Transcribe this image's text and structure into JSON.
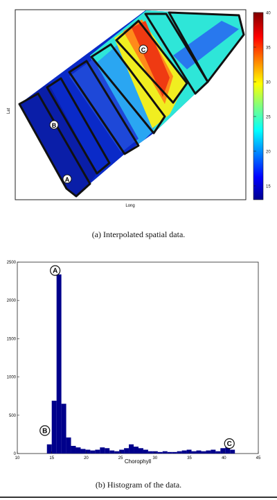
{
  "chart_data": [
    {
      "type": "heatmap",
      "xlabel": "Long",
      "ylabel": "Lat",
      "colorbar": {
        "ticks": [
          15,
          20,
          25,
          30,
          35,
          40
        ],
        "range": [
          13,
          40
        ]
      },
      "markers": [
        {
          "label": "A",
          "role": "south-tip"
        },
        {
          "label": "B",
          "role": "lower-track"
        },
        {
          "label": "C",
          "role": "upper-track"
        }
      ],
      "caption": "(a)  Interpolated spatial data."
    },
    {
      "type": "bar",
      "xlabel": "Chorophyll",
      "xlim": [
        10,
        45
      ],
      "ylim": [
        0,
        2500
      ],
      "xticks": [
        10,
        15,
        20,
        25,
        30,
        35,
        40,
        45
      ],
      "yticks": [
        0,
        500,
        1000,
        1500,
        2000,
        2500
      ],
      "bar_color": "#00008b",
      "bin_width": 0.7,
      "x": [
        14.3,
        15.0,
        15.7,
        16.4,
        17.1,
        17.8,
        18.5,
        19.2,
        19.9,
        20.6,
        21.3,
        22.0,
        22.7,
        23.4,
        24.1,
        24.8,
        25.5,
        26.2,
        26.9,
        27.6,
        28.3,
        29.0,
        29.7,
        30.4,
        31.1,
        31.8,
        32.5,
        33.2,
        33.9,
        34.6,
        35.3,
        36.0,
        36.7,
        37.4,
        38.1,
        38.8,
        39.5,
        40.2,
        40.9
      ],
      "values": [
        120,
        690,
        2340,
        650,
        210,
        100,
        80,
        60,
        50,
        40,
        50,
        80,
        70,
        40,
        30,
        50,
        70,
        120,
        90,
        70,
        50,
        30,
        30,
        20,
        30,
        20,
        20,
        30,
        40,
        50,
        30,
        40,
        30,
        40,
        50,
        30,
        70,
        80,
        50
      ],
      "annotations": [
        {
          "label": "A",
          "x": 15.5,
          "y": 2390
        },
        {
          "label": "B",
          "x": 14.0,
          "y": 300
        },
        {
          "label": "C",
          "x": 40.8,
          "y": 130
        }
      ],
      "caption": "(b)  Histogram of the data."
    }
  ]
}
